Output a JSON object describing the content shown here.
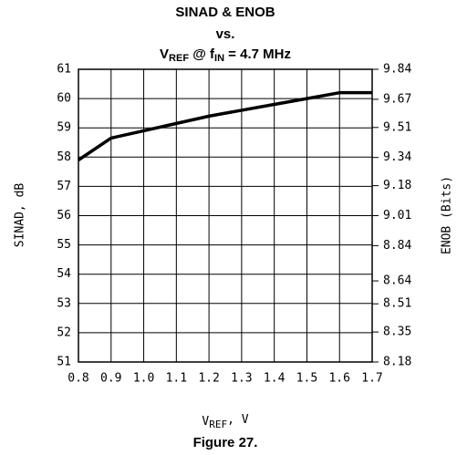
{
  "chart_data": {
    "type": "line",
    "title": [
      "SINAD & ENOB",
      "vs.",
      [
        "V",
        "REF",
        " @ f",
        "IN",
        " = 4.7 MHz"
      ]
    ],
    "xlabel": [
      "V",
      "REF",
      ", V"
    ],
    "ylabel": "SINAD, dB",
    "y2label": "ENOB (Bits)",
    "caption": "Figure 27.",
    "x": [
      0.8,
      0.9,
      1.0,
      1.1,
      1.2,
      1.3,
      1.4,
      1.5,
      1.6,
      1.7
    ],
    "series": [
      {
        "color": "#000000",
        "values": [
          57.9,
          58.65,
          58.9,
          59.15,
          59.4,
          59.6,
          59.8,
          60.0,
          60.2,
          60.2
        ]
      }
    ],
    "xlim": [
      0.8,
      1.7
    ],
    "xticks": [
      0.8,
      0.9,
      {
        "value": 1,
        "label": "1.0"
      },
      1.1,
      1.2,
      1.3,
      1.4,
      1.5,
      1.6,
      1.7
    ],
    "ylim": [
      51,
      61
    ],
    "yticks": [
      51,
      52,
      53,
      54,
      55,
      56,
      57,
      58,
      59,
      60,
      61
    ],
    "y2lim": [
      8.18,
      9.84
    ],
    "y2ticks": [
      8.18,
      8.35,
      8.51,
      8.64,
      8.84,
      9.01,
      9.18,
      9.34,
      9.51,
      9.67,
      9.84
    ],
    "grid": true
  }
}
